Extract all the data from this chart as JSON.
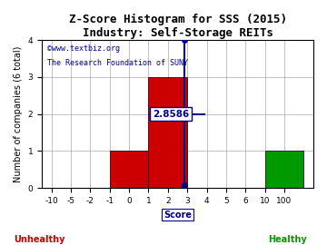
{
  "title": "Z-Score Histogram for SSS (2015)",
  "subtitle": "Industry: Self-Storage REITs",
  "xlabel": "Score",
  "ylabel": "Number of companies (6 total)",
  "watermark1": "©www.textbiz.org",
  "watermark2": "The Research Foundation of SUNY",
  "zscore_label": "2.8586",
  "background_color": "#ffffff",
  "unhealthy_label": "Unhealthy",
  "healthy_label": "Healthy",
  "unhealthy_color": "#cc0000",
  "healthy_color": "#009900",
  "bar_color_red": "#cc0000",
  "bar_color_green": "#009900",
  "vline_color": "#00008b",
  "tick_labels": [
    "-10",
    "-5",
    "-2",
    "-1",
    "0",
    "1",
    "2",
    "3",
    "4",
    "5",
    "6",
    "10",
    "100"
  ],
  "ylim": [
    0,
    4
  ],
  "yticks": [
    0,
    1,
    2,
    3,
    4
  ],
  "title_fontsize": 9,
  "subtitle_fontsize": 8,
  "tick_fontsize": 6.5,
  "ylabel_fontsize": 7,
  "xlabel_fontsize": 7,
  "watermark_fontsize": 6,
  "annotation_fontsize": 7.5
}
